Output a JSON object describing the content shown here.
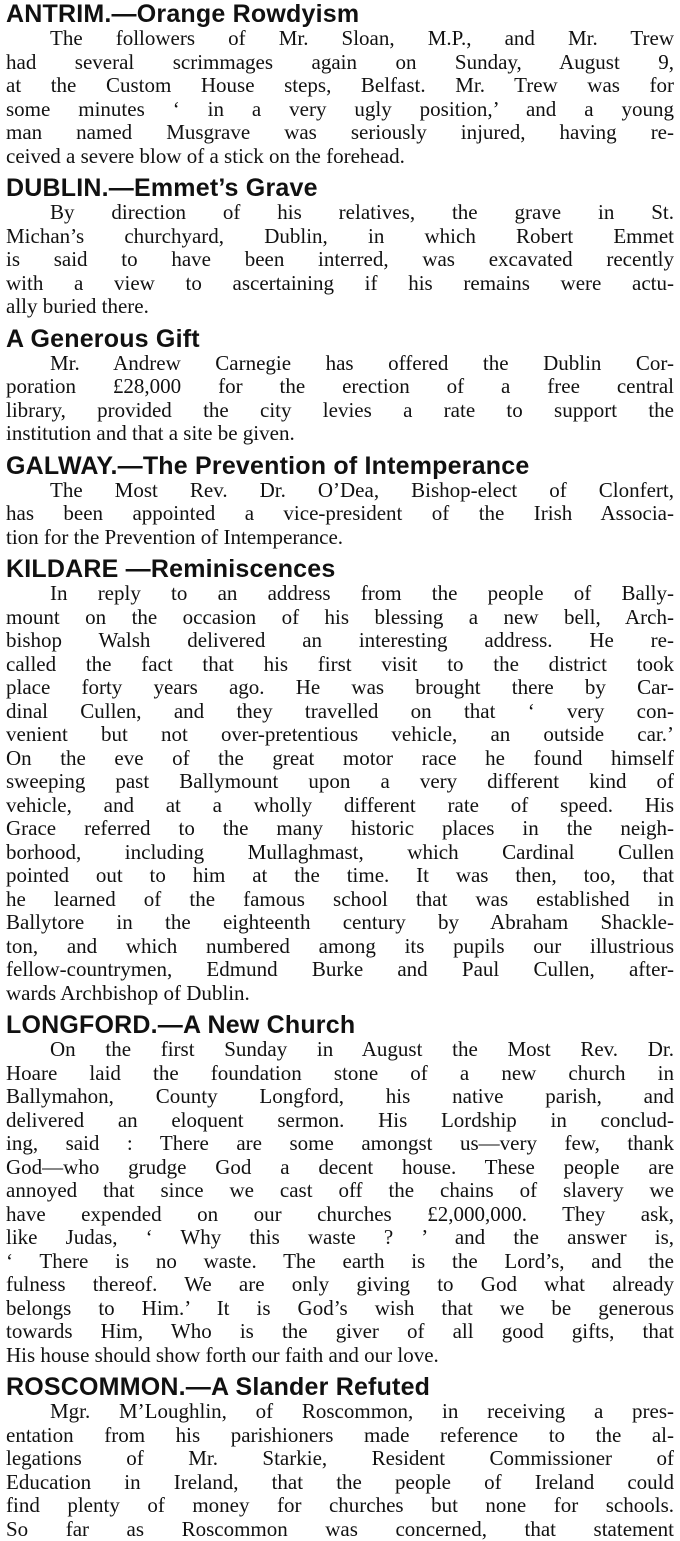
{
  "sections": [
    {
      "heading": "ANTRIM.—Orange Rowdyism",
      "lines": [
        "The followers of Mr. Sloan, M.P., and Mr. Trew",
        "had several scrimmages again on Sunday, August 9,",
        "at the Custom House steps, Belfast. Mr. Trew was for",
        "some minutes ‘ in a very ugly position,’ and a young",
        "man named Musgrave was seriously injured, having re-",
        "ceived a severe blow of a stick on the forehead."
      ]
    },
    {
      "heading": "DUBLIN.—Emmet’s Grave",
      "lines": [
        "By direction of his relatives, the grave in St.",
        "Michan’s churchyard, Dublin, in which Robert Emmet",
        "is said to have been interred, was excavated recently",
        "with a view to ascertaining if his remains were actu-",
        "ally buried there."
      ]
    },
    {
      "heading": "A Generous Gift",
      "lines": [
        "Mr. Andrew Carnegie has offered the Dublin Cor-",
        "poration £28,000 for the erection of a free central",
        "library, provided the city levies a rate to support the",
        "institution and that a site be given."
      ]
    },
    {
      "heading": "GALWAY.—The Prevention of Intemperance",
      "lines": [
        "The Most Rev. Dr. O’Dea, Bishop-elect of Clonfert,",
        "has been appointed a vice-president of the Irish Associa-",
        "tion for the Prevention of Intemperance."
      ]
    },
    {
      "heading": "KILDARE —Reminiscences",
      "lines": [
        "In reply to an address from the people of Bally-",
        "mount on the occasion of his blessing a new bell, Arch-",
        "bishop Walsh delivered an interesting address. He re-",
        "called the fact that his first visit to the district took",
        "place forty years ago. He was brought there by Car-",
        "dinal Cullen, and they travelled on that ‘ very con-",
        "venient but not over-pretentious vehicle, an outside car.’",
        "On the eve of the great motor race he found himself",
        "sweeping past Ballymount upon a very different kind of",
        "vehicle, and at a wholly different rate of speed. His",
        "Grace referred to the many historic places in the neigh-",
        "borhood, including Mullaghmast, which Cardinal Cullen",
        "pointed out to him at the time. It was then, too, that",
        "he learned of the famous school that was established in",
        "Ballytore in the eighteenth century by Abraham Shackle-",
        "ton, and which numbered among its pupils our illustrious",
        "fellow-countrymen, Edmund Burke and Paul Cullen, after-",
        "wards Archbishop of Dublin."
      ]
    },
    {
      "heading": "LONGFORD.—A New Church",
      "lines": [
        "On the first Sunday in August the Most Rev. Dr.",
        "Hoare laid the foundation stone of a new church in",
        "Ballymahon, County Longford, his native parish, and",
        "delivered an eloquent sermon. His Lordship in conclud-",
        "ing, said : There are some amongst us—very few, thank",
        "God—who grudge God a decent house. These people are",
        "annoyed that since we cast off the chains of slavery we",
        "have expended on our churches £2,000,000. They ask,",
        "like Judas, ‘ Why this waste ? ’ and the answer is,",
        "‘ There is no waste. The earth is the Lord’s, and the",
        "fulness thereof. We are only giving to God what already",
        "belongs to Him.’ It is God’s wish that we be generous",
        "towards Him, Who is the giver of all good gifts, that",
        "His house should show forth our faith and our love."
      ]
    },
    {
      "heading": "ROSCOMMON.—A Slander Refuted",
      "lines": [
        "Mgr. M’Loughlin, of Roscommon, in receiving a pres-",
        "entation from his parishioners made reference to the al-",
        "legations of Mr. Starkie, Resident Commissioner of",
        "Education in Ireland, that the people of Ireland could",
        "find plenty of money for churches but none for schools.",
        "So far as Roscommon was concerned, that statement"
      ],
      "continues": true
    }
  ]
}
